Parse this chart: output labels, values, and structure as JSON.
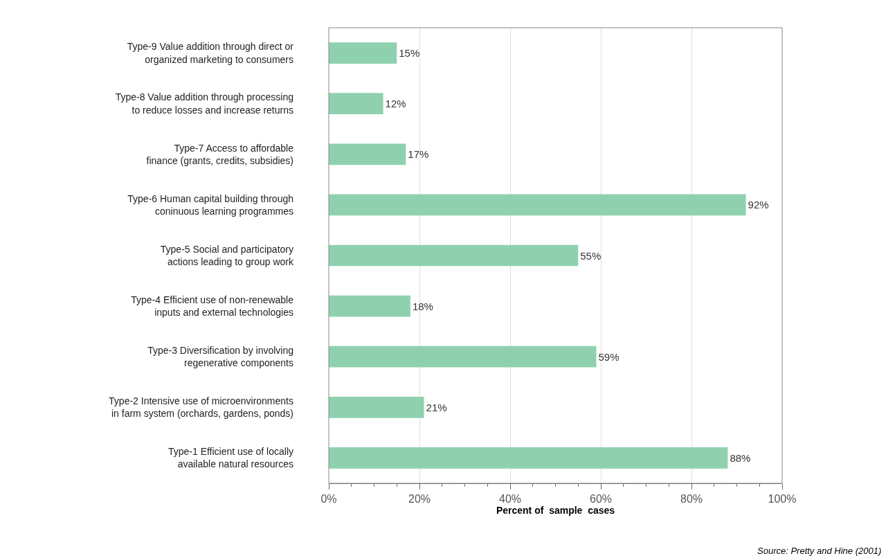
{
  "chart_data": {
    "type": "bar",
    "orientation": "horizontal",
    "xlabel": "Percent of  sample  cases",
    "categories": [
      "Type-9 Value addition through direct or\norganized marketing to consumers",
      "Type-8 Value addition through processing\nto reduce losses and increase returns",
      "Type-7 Access to affordable\nfinance (grants, credits, subsidies)",
      "Type-6 Human capital building through\nconinuous learning programmes",
      "Type-5 Social and participatory\nactions leading to group work",
      "Type-4 Efficient use of non-renewable\ninputs and external technologies",
      "Type-3 Diversification by involving\nregenerative components",
      "Type-2 Intensive use of microenvironments\nin farm system (orchards, gardens, ponds)",
      "Type-1 Efficient use of locally\navailable natural resources"
    ],
    "values": [
      15,
      12,
      17,
      92,
      55,
      18,
      59,
      21,
      88
    ],
    "value_labels": [
      "15%",
      "12%",
      "17%",
      "92%",
      "55%",
      "18%",
      "59%",
      "21%",
      "88%"
    ],
    "color": "#8fd1ae",
    "xlim": [
      0,
      100
    ],
    "xticks": [
      {
        "value": 0,
        "label": "0%"
      },
      {
        "value": 5,
        "label": null
      },
      {
        "value": 10,
        "label": null
      },
      {
        "value": 15,
        "label": null
      },
      {
        "value": 20,
        "label": "20%"
      },
      {
        "value": 25,
        "label": null
      },
      {
        "value": 30,
        "label": null
      },
      {
        "value": 35,
        "label": null
      },
      {
        "value": 40,
        "label": "40%"
      },
      {
        "value": 45,
        "label": null
      },
      {
        "value": 50,
        "label": null
      },
      {
        "value": 55,
        "label": null
      },
      {
        "value": 60,
        "label": "60%"
      },
      {
        "value": 65,
        "label": null
      },
      {
        "value": 70,
        "label": null
      },
      {
        "value": 75,
        "label": null
      },
      {
        "value": 80,
        "label": "80%"
      },
      {
        "value": 85,
        "label": null
      },
      {
        "value": 90,
        "label": null
      },
      {
        "value": 95,
        "label": null
      },
      {
        "value": 100,
        "label": "100%"
      }
    ],
    "grid": "x",
    "annotations": [
      "Source: Pretty and Hine (2001)"
    ]
  }
}
